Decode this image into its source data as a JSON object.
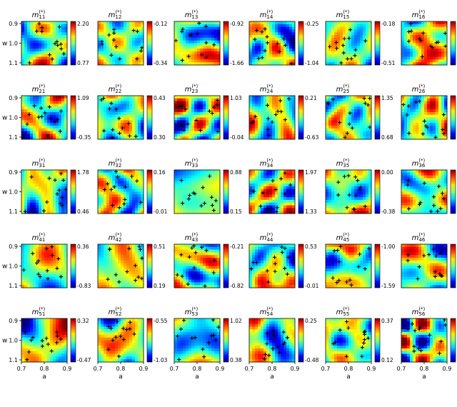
{
  "chart_data": {
    "type": "heatmap",
    "layout": {
      "rows": 5,
      "cols": 6
    },
    "colormap": "jet",
    "xlabel": "a",
    "ylabel": "w",
    "xticks": [
      "0.7",
      "0.8",
      "0.9"
    ],
    "yticks": [
      "0.9",
      "1.0",
      "1.1"
    ],
    "xlim": [
      0.7,
      0.9
    ],
    "ylim": [
      1.1,
      0.9
    ],
    "marker": "+",
    "panels": [
      {
        "title": "m",
        "sub": "11",
        "sup": "(*)",
        "vmax": "2.20",
        "vmin": "0.77"
      },
      {
        "title": "m",
        "sub": "12",
        "sup": "(*)",
        "vmax": "-0.12",
        "vmin": "-0.34"
      },
      {
        "title": "m",
        "sub": "13",
        "sup": "(*)",
        "vmax": "-0.92",
        "vmin": "-1.66"
      },
      {
        "title": "m",
        "sub": "14",
        "sup": "(*)",
        "vmax": "-0.25",
        "vmin": "-1.04"
      },
      {
        "title": "m",
        "sub": "15",
        "sup": "(*)",
        "vmax": "-0.18",
        "vmin": "-0.51"
      },
      {
        "title": "m",
        "sub": "16",
        "sup": "(*)",
        "vmax": "",
        "vmin": ""
      },
      {
        "title": "m",
        "sub": "21",
        "sup": "(*)",
        "vmax": "1.09",
        "vmin": "-0.35"
      },
      {
        "title": "m",
        "sub": "22",
        "sup": "(*)",
        "vmax": "0.43",
        "vmin": "0.30"
      },
      {
        "title": "m",
        "sub": "23",
        "sup": "(*)",
        "vmax": "1.03",
        "vmin": "-0.04"
      },
      {
        "title": "m",
        "sub": "24",
        "sup": "(*)",
        "vmax": "0.21",
        "vmin": "-0.63"
      },
      {
        "title": "m",
        "sub": "25",
        "sup": "(*)",
        "vmax": "1.35",
        "vmin": "0.68"
      },
      {
        "title": "m",
        "sub": "26",
        "sup": "(*)",
        "vmax": "",
        "vmin": ""
      },
      {
        "title": "m",
        "sub": "31",
        "sup": "(*)",
        "vmax": "1.78",
        "vmin": "0.46"
      },
      {
        "title": "m",
        "sub": "32",
        "sup": "(*)",
        "vmax": "0.16",
        "vmin": "-0.01"
      },
      {
        "title": "m",
        "sub": "33",
        "sup": "(*)",
        "vmax": "0.88",
        "vmin": "0.15"
      },
      {
        "title": "m",
        "sub": "34",
        "sup": "(*)",
        "vmax": "1.97",
        "vmin": "1.33"
      },
      {
        "title": "m",
        "sub": "35",
        "sup": "(*)",
        "vmax": "0.00",
        "vmin": "-0.38"
      },
      {
        "title": "m",
        "sub": "36",
        "sup": "(*)",
        "vmax": "",
        "vmin": ""
      },
      {
        "title": "m",
        "sub": "41",
        "sup": "(*)",
        "vmax": "0.36",
        "vmin": "-0.83"
      },
      {
        "title": "m",
        "sub": "42",
        "sup": "(*)",
        "vmax": "0.51",
        "vmin": "0.19"
      },
      {
        "title": "m",
        "sub": "43",
        "sup": "(*)",
        "vmax": "-0.21",
        "vmin": "-0.82"
      },
      {
        "title": "m",
        "sub": "44",
        "sup": "(*)",
        "vmax": "0.53",
        "vmin": "-0.01"
      },
      {
        "title": "m",
        "sub": "45",
        "sup": "(*)",
        "vmax": "-1.00",
        "vmin": "-1.59"
      },
      {
        "title": "m",
        "sub": "46",
        "sup": "(*)",
        "vmax": "",
        "vmin": ""
      },
      {
        "title": "m",
        "sub": "51",
        "sup": "(*)",
        "vmax": "0.32",
        "vmin": "-0.47"
      },
      {
        "title": "m",
        "sub": "52",
        "sup": "(*)",
        "vmax": "-0.55",
        "vmin": "-1.03"
      },
      {
        "title": "m",
        "sub": "53",
        "sup": "(*)",
        "vmax": "1.02",
        "vmin": "0.38"
      },
      {
        "title": "m",
        "sub": "54",
        "sup": "(*)",
        "vmax": "0.25",
        "vmin": "-0.48"
      },
      {
        "title": "m",
        "sub": "55",
        "sup": "(*)",
        "vmax": "0.37",
        "vmin": "0.12"
      },
      {
        "title": "m",
        "sub": "56",
        "sup": "(*)",
        "vmax": "",
        "vmin": ""
      }
    ]
  }
}
